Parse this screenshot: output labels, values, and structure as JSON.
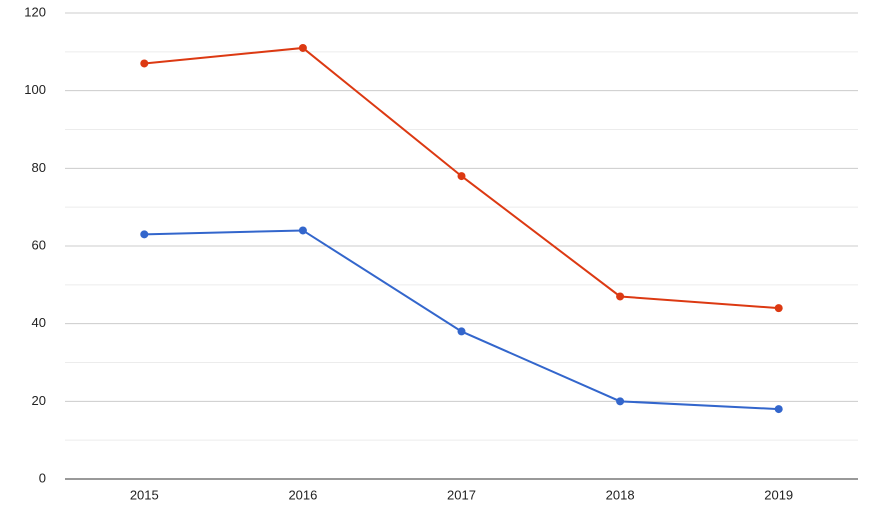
{
  "chart_data": {
    "type": "line",
    "categories": [
      "2015",
      "2016",
      "2017",
      "2018",
      "2019"
    ],
    "series": [
      {
        "color": "#dc3912",
        "values": [
          107,
          111,
          78,
          47,
          44
        ]
      },
      {
        "color": "#3366cc",
        "values": [
          63,
          64,
          38,
          20,
          18
        ]
      }
    ],
    "ylim": [
      0,
      120
    ],
    "yticks": [
      0,
      20,
      40,
      60,
      80,
      100,
      120
    ],
    "grid": true,
    "minor_grid": true
  }
}
